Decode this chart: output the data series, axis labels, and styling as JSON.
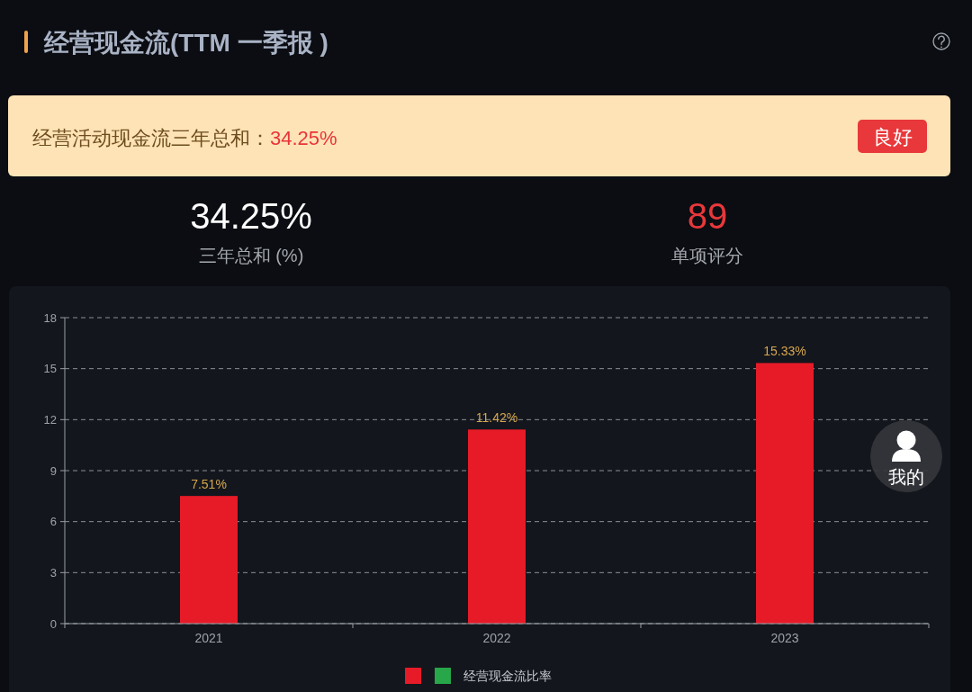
{
  "chart_data": [
    {
      "type": "other",
      "title": "经营现金流(TTM 一季报 )",
      "annotations": [
        "经营活动现金流三年总和：",
        "34.25%",
        "良好",
        "34.25%",
        "三年总和 (%)",
        "89",
        "单项评分",
        "我的"
      ]
    },
    {
      "type": "bar",
      "categories": [
        "2021",
        "2022",
        "2023"
      ],
      "series": [
        {
          "name": "经营现金流比率",
          "color": "#e61b27",
          "values": [
            7.51,
            11.42,
            15.33
          ],
          "value_labels": [
            "7.51%",
            "11.42%",
            "15.33%"
          ]
        }
      ],
      "ylim": [
        0,
        18
      ],
      "yticks": [
        0,
        3,
        6,
        9,
        12,
        15,
        18
      ],
      "grid": "y",
      "legend": "bottom"
    }
  ]
}
